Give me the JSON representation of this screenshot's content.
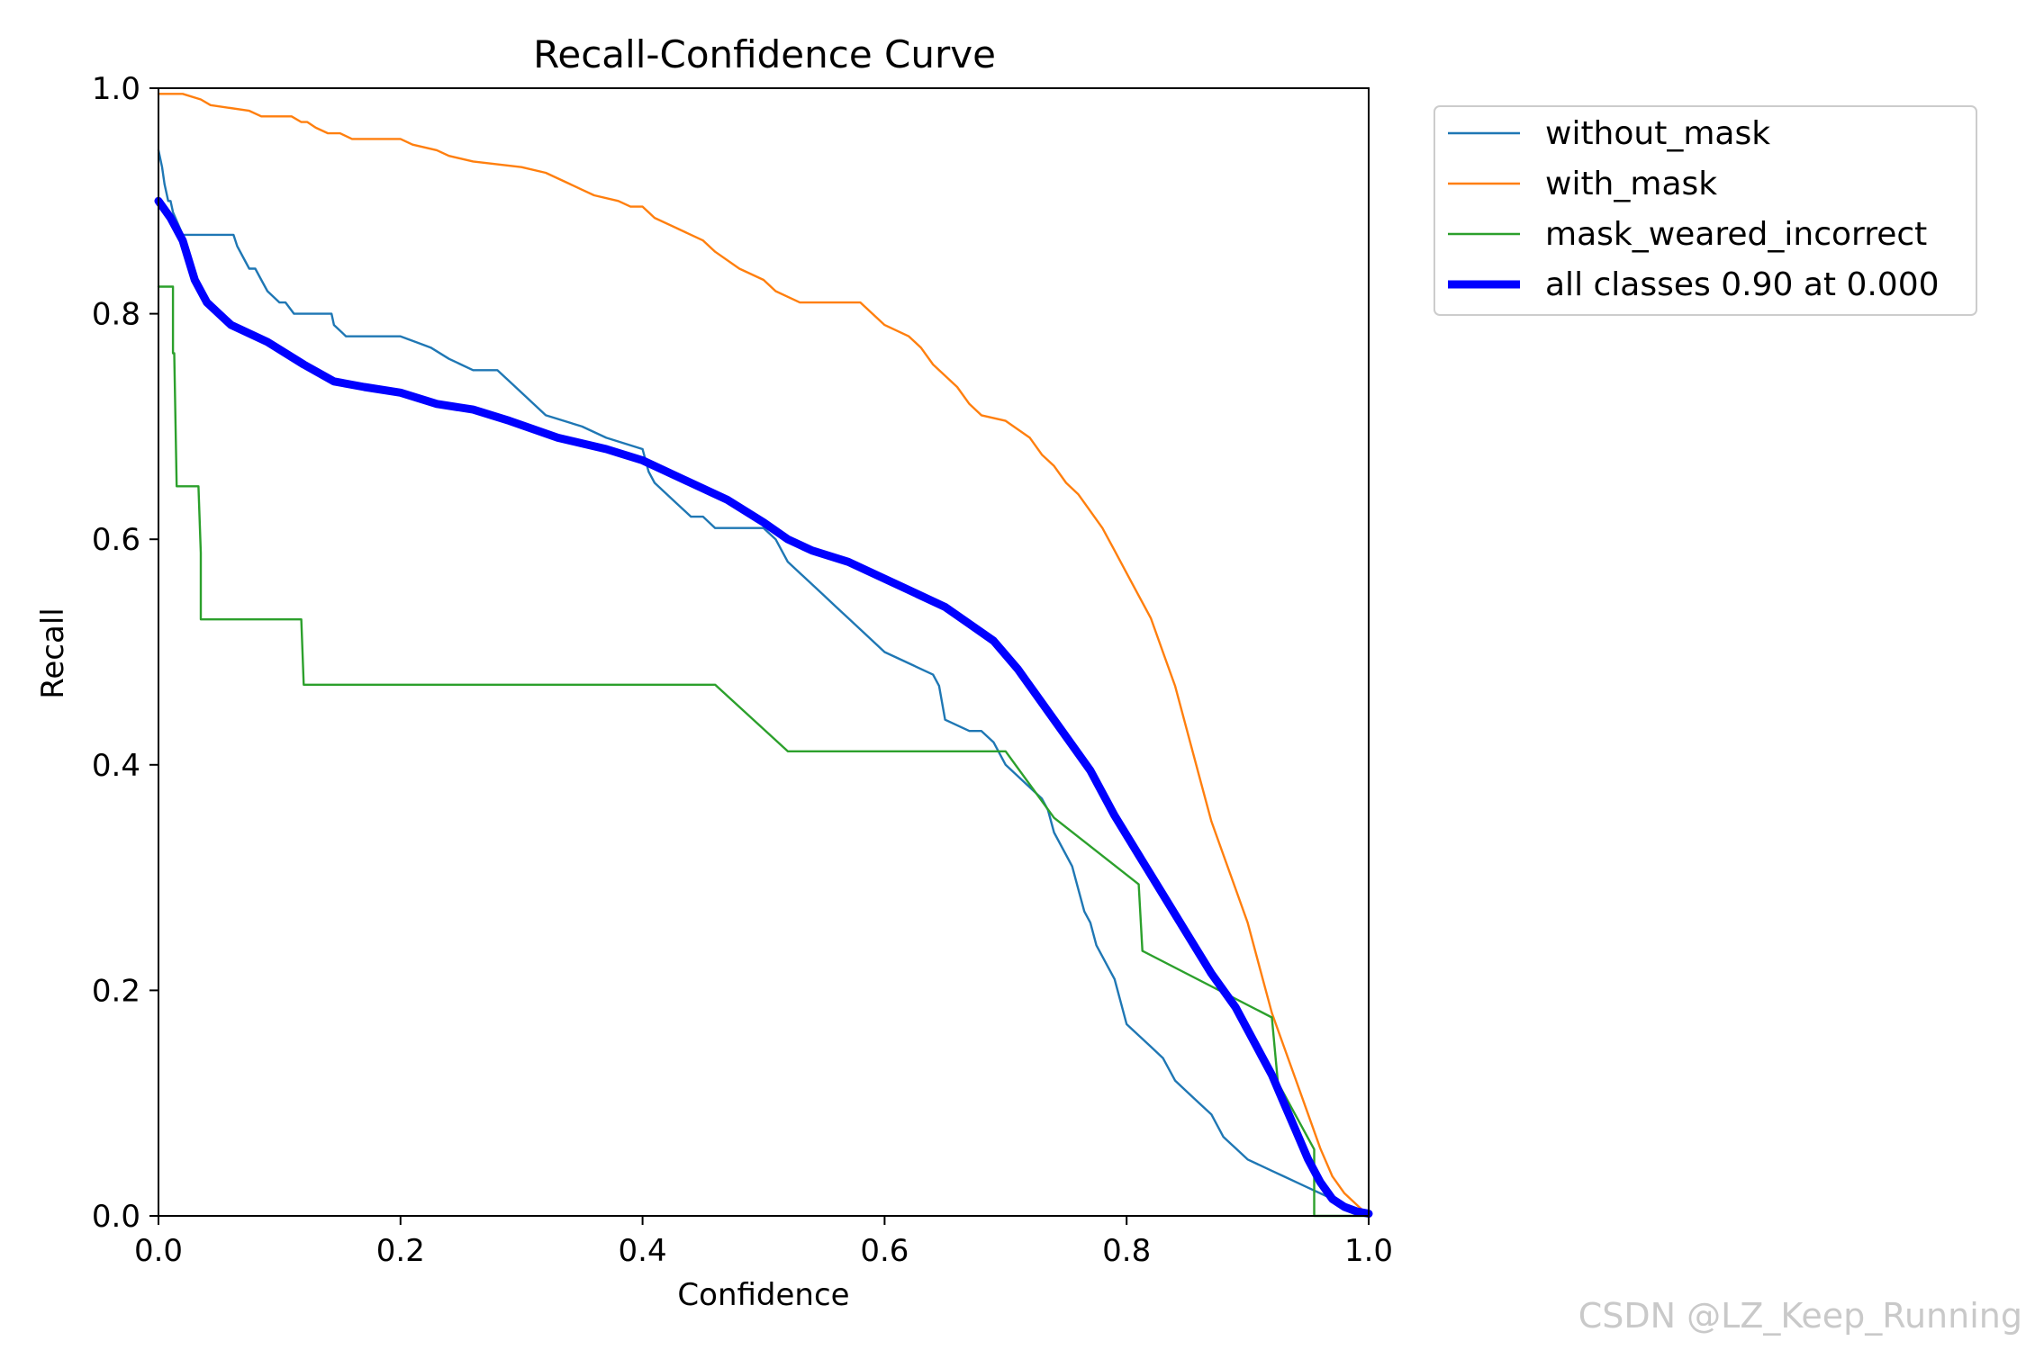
{
  "watermark": "CSDN @LZ_Keep_Running",
  "chart_data": {
    "type": "line",
    "title": "Recall-Confidence Curve",
    "xlabel": "Confidence",
    "ylabel": "Recall",
    "xlim": [
      0.0,
      1.0
    ],
    "ylim": [
      0.0,
      1.0
    ],
    "xticks": [
      "0.0",
      "0.2",
      "0.4",
      "0.6",
      "0.8",
      "1.0"
    ],
    "yticks": [
      "0.0",
      "0.2",
      "0.4",
      "0.6",
      "0.8",
      "1.0"
    ],
    "grid": false,
    "legend_position": "outside-top-right",
    "series": [
      {
        "name": "without_mask",
        "color": "#1f77b4",
        "width": "thin",
        "x": [
          0.0,
          0.003,
          0.005,
          0.008,
          0.01,
          0.012,
          0.016,
          0.02,
          0.062,
          0.065,
          0.07,
          0.075,
          0.08,
          0.085,
          0.09,
          0.1,
          0.105,
          0.112,
          0.13,
          0.143,
          0.145,
          0.155,
          0.2,
          0.225,
          0.24,
          0.26,
          0.28,
          0.29,
          0.3,
          0.32,
          0.35,
          0.37,
          0.4,
          0.405,
          0.41,
          0.42,
          0.43,
          0.44,
          0.45,
          0.46,
          0.47,
          0.5,
          0.51,
          0.52,
          0.54,
          0.55,
          0.56,
          0.57,
          0.58,
          0.6,
          0.62,
          0.64,
          0.645,
          0.65,
          0.67,
          0.68,
          0.69,
          0.7,
          0.72,
          0.73,
          0.735,
          0.74,
          0.75,
          0.755,
          0.76,
          0.765,
          0.77,
          0.775,
          0.78,
          0.785,
          0.79,
          0.795,
          0.8,
          0.81,
          0.82,
          0.83,
          0.84,
          0.85,
          0.86,
          0.87,
          0.88,
          0.89,
          0.9,
          0.91,
          0.92,
          0.93,
          0.94,
          0.95,
          0.96,
          0.97,
          0.98,
          0.99,
          1.0
        ],
        "y": [
          0.945,
          0.93,
          0.915,
          0.9,
          0.9,
          0.89,
          0.88,
          0.87,
          0.87,
          0.86,
          0.85,
          0.84,
          0.84,
          0.83,
          0.82,
          0.81,
          0.81,
          0.8,
          0.8,
          0.8,
          0.79,
          0.78,
          0.78,
          0.77,
          0.76,
          0.75,
          0.75,
          0.74,
          0.73,
          0.71,
          0.7,
          0.69,
          0.68,
          0.66,
          0.65,
          0.64,
          0.63,
          0.62,
          0.62,
          0.61,
          0.61,
          0.61,
          0.6,
          0.58,
          0.56,
          0.55,
          0.54,
          0.53,
          0.52,
          0.5,
          0.49,
          0.48,
          0.47,
          0.44,
          0.43,
          0.43,
          0.42,
          0.4,
          0.38,
          0.37,
          0.36,
          0.34,
          0.32,
          0.31,
          0.29,
          0.27,
          0.26,
          0.24,
          0.23,
          0.22,
          0.21,
          0.19,
          0.17,
          0.16,
          0.15,
          0.14,
          0.12,
          0.11,
          0.1,
          0.09,
          0.07,
          0.06,
          0.05,
          0.045,
          0.04,
          0.035,
          0.03,
          0.025,
          0.02,
          0.015,
          0.01,
          0.005,
          0.0
        ]
      },
      {
        "name": "with_mask",
        "color": "#ff7f0e",
        "width": "thin",
        "x": [
          0.0,
          0.02,
          0.035,
          0.043,
          0.075,
          0.085,
          0.11,
          0.118,
          0.123,
          0.13,
          0.14,
          0.15,
          0.16,
          0.2,
          0.21,
          0.23,
          0.24,
          0.24,
          0.26,
          0.3,
          0.32,
          0.34,
          0.35,
          0.36,
          0.38,
          0.39,
          0.4,
          0.41,
          0.43,
          0.45,
          0.46,
          0.48,
          0.5,
          0.51,
          0.52,
          0.53,
          0.54,
          0.58,
          0.6,
          0.62,
          0.63,
          0.64,
          0.65,
          0.66,
          0.67,
          0.68,
          0.7,
          0.72,
          0.73,
          0.74,
          0.75,
          0.76,
          0.77,
          0.78,
          0.79,
          0.8,
          0.81,
          0.82,
          0.83,
          0.84,
          0.85,
          0.86,
          0.87,
          0.88,
          0.89,
          0.9,
          0.91,
          0.92,
          0.93,
          0.94,
          0.95,
          0.96,
          0.97,
          0.98,
          0.99,
          1.0
        ],
        "y": [
          0.995,
          0.995,
          0.99,
          0.985,
          0.98,
          0.975,
          0.975,
          0.97,
          0.97,
          0.965,
          0.96,
          0.96,
          0.955,
          0.955,
          0.95,
          0.945,
          0.94,
          0.94,
          0.935,
          0.93,
          0.925,
          0.915,
          0.91,
          0.905,
          0.9,
          0.895,
          0.895,
          0.885,
          0.875,
          0.865,
          0.855,
          0.84,
          0.83,
          0.82,
          0.815,
          0.81,
          0.81,
          0.81,
          0.79,
          0.78,
          0.77,
          0.755,
          0.745,
          0.735,
          0.72,
          0.71,
          0.705,
          0.69,
          0.675,
          0.665,
          0.65,
          0.64,
          0.625,
          0.61,
          0.59,
          0.57,
          0.55,
          0.53,
          0.5,
          0.47,
          0.43,
          0.39,
          0.35,
          0.32,
          0.29,
          0.26,
          0.22,
          0.18,
          0.15,
          0.12,
          0.09,
          0.06,
          0.035,
          0.02,
          0.01,
          0.0
        ]
      },
      {
        "name": "mask_weared_incorrect",
        "color": "#2ca02c",
        "width": "thin",
        "x": [
          0.0,
          0.012,
          0.012,
          0.013,
          0.015,
          0.017,
          0.033,
          0.035,
          0.035,
          0.118,
          0.12,
          0.46,
          0.52,
          0.7,
          0.74,
          0.81,
          0.813,
          0.92,
          0.925,
          0.955,
          0.955,
          0.99,
          1.0
        ],
        "y": [
          0.824,
          0.824,
          0.765,
          0.765,
          0.647,
          0.647,
          0.647,
          0.588,
          0.529,
          0.529,
          0.471,
          0.471,
          0.412,
          0.412,
          0.353,
          0.294,
          0.235,
          0.176,
          0.118,
          0.059,
          0.0,
          0.0,
          0.0
        ]
      },
      {
        "name": "all classes 0.90 at 0.000",
        "color": "#0000ff",
        "width": "thick",
        "x": [
          0.0,
          0.01,
          0.02,
          0.03,
          0.04,
          0.06,
          0.09,
          0.12,
          0.145,
          0.17,
          0.2,
          0.23,
          0.26,
          0.29,
          0.33,
          0.37,
          0.4,
          0.43,
          0.47,
          0.5,
          0.52,
          0.54,
          0.57,
          0.6,
          0.62,
          0.65,
          0.67,
          0.69,
          0.71,
          0.74,
          0.77,
          0.79,
          0.81,
          0.83,
          0.85,
          0.87,
          0.89,
          0.9,
          0.91,
          0.92,
          0.93,
          0.94,
          0.95,
          0.96,
          0.97,
          0.98,
          0.99,
          1.0
        ],
        "y": [
          0.9,
          0.885,
          0.865,
          0.83,
          0.81,
          0.79,
          0.775,
          0.755,
          0.74,
          0.735,
          0.73,
          0.72,
          0.715,
          0.705,
          0.69,
          0.68,
          0.67,
          0.655,
          0.635,
          0.615,
          0.6,
          0.59,
          0.58,
          0.565,
          0.555,
          0.54,
          0.525,
          0.51,
          0.485,
          0.44,
          0.395,
          0.355,
          0.32,
          0.285,
          0.25,
          0.215,
          0.185,
          0.165,
          0.145,
          0.125,
          0.1,
          0.075,
          0.05,
          0.03,
          0.015,
          0.008,
          0.004,
          0.002
        ]
      }
    ]
  }
}
